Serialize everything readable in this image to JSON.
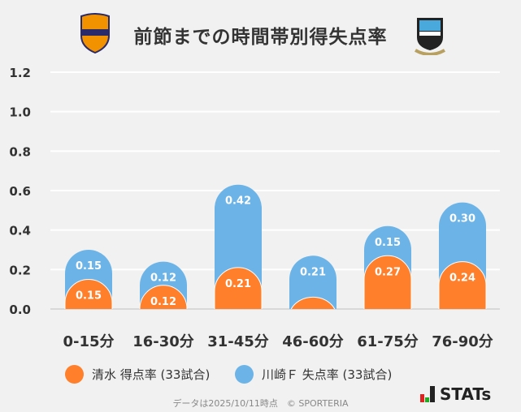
{
  "title": "前節までの時間帯別得失点率",
  "logos": {
    "home": "S-PULSE",
    "away": "FRONTALE KAWASAKI"
  },
  "chart_data": {
    "type": "bar",
    "stacked": true,
    "title": "前節までの時間帯別得失点率",
    "categories": [
      "0-15分",
      "16-30分",
      "31-45分",
      "46-60分",
      "61-75分",
      "76-90分"
    ],
    "series": [
      {
        "name": "清水 得点率 (33試合)",
        "color": "#ff7f2a",
        "values": [
          0.15,
          0.12,
          0.21,
          0.06,
          0.27,
          0.24
        ]
      },
      {
        "name": "川崎Ｆ 失点率 (33試合)",
        "color": "#6cb4e8",
        "values": [
          0.15,
          0.12,
          0.42,
          0.21,
          0.15,
          0.3
        ]
      }
    ],
    "yticks": [
      "0.0",
      "0.2",
      "0.4",
      "0.6",
      "0.8",
      "1.0",
      "1.2"
    ],
    "ylim": [
      0,
      1.2
    ],
    "grid": true,
    "legend": "bottom"
  },
  "footer": "データは2025/10/11時点　© SPORTERIA",
  "brand": "STATs"
}
